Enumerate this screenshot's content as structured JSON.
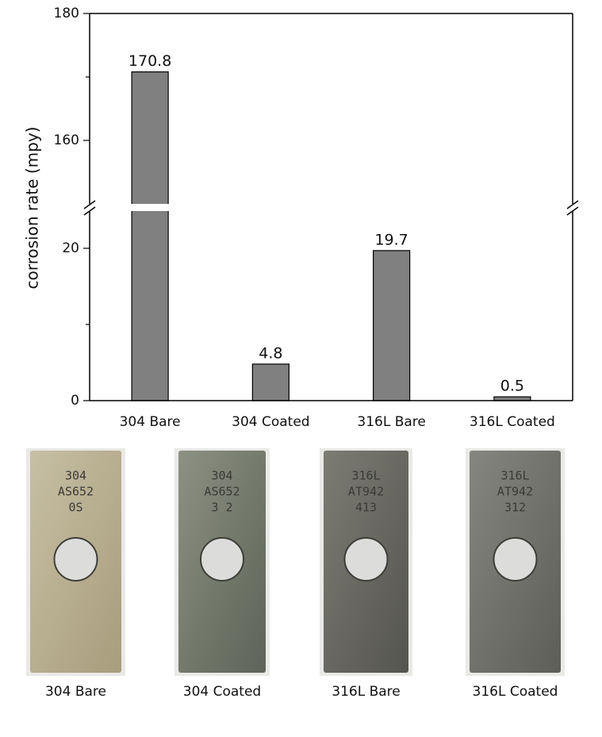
{
  "chart_data": {
    "type": "bar",
    "ylabel": "corrosion rate (mpy)",
    "categories": [
      "304 Bare",
      "304 Coated",
      "316L Bare",
      "316L Coated"
    ],
    "values": [
      170.8,
      4.8,
      19.7,
      0.5
    ],
    "color": "#808080",
    "ylim": [
      0,
      25
    ],
    "yticks": [
      0,
      20
    ],
    "yticks_minor": [
      10
    ],
    "ylim_upper": [
      149,
      180
    ],
    "yticks_upper": [
      160,
      180
    ],
    "yticks_upper_minor": [
      170
    ],
    "axis_break": true
  },
  "photos": [
    {
      "caption": "304 Bare",
      "engraving": [
        "304",
        "AS652",
        "0S"
      ]
    },
    {
      "caption": "304 Coated",
      "engraving": [
        "304",
        "AS652",
        "3 2"
      ]
    },
    {
      "caption": "316L Bare",
      "engraving": [
        "316L",
        "AT942",
        "413"
      ]
    },
    {
      "caption": "316L Coated",
      "engraving": [
        "316L",
        "AT942",
        "312"
      ]
    }
  ]
}
